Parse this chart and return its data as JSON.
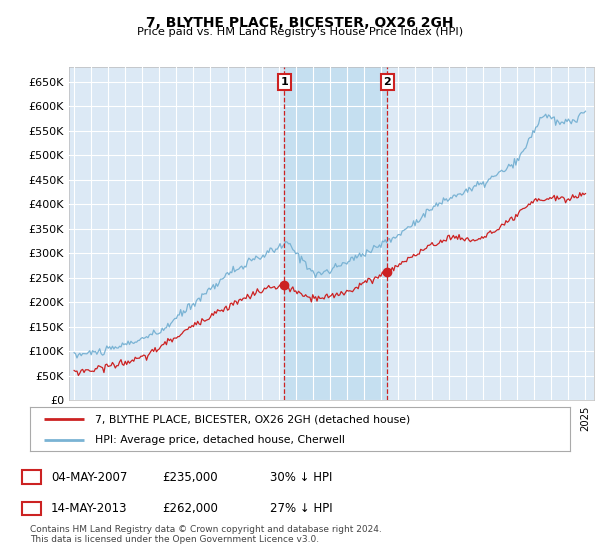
{
  "title": "7, BLYTHE PLACE, BICESTER, OX26 2GH",
  "subtitle": "Price paid vs. HM Land Registry's House Price Index (HPI)",
  "ylabel_ticks": [
    "£0",
    "£50K",
    "£100K",
    "£150K",
    "£200K",
    "£250K",
    "£300K",
    "£350K",
    "£400K",
    "£450K",
    "£500K",
    "£550K",
    "£600K",
    "£650K"
  ],
  "ytick_values": [
    0,
    50000,
    100000,
    150000,
    200000,
    250000,
    300000,
    350000,
    400000,
    450000,
    500000,
    550000,
    600000,
    650000
  ],
  "hpi_color": "#7ab3d4",
  "price_color": "#cc2222",
  "marker1_year": 2007.34,
  "marker1_price": 235000,
  "marker2_year": 2013.37,
  "marker2_price": 262000,
  "legend_line1": "7, BLYTHE PLACE, BICESTER, OX26 2GH (detached house)",
  "legend_line2": "HPI: Average price, detached house, Cherwell",
  "table_row1": [
    "1",
    "04-MAY-2007",
    "£235,000",
    "30% ↓ HPI"
  ],
  "table_row2": [
    "2",
    "14-MAY-2013",
    "£262,000",
    "27% ↓ HPI"
  ],
  "footnote": "Contains HM Land Registry data © Crown copyright and database right 2024.\nThis data is licensed under the Open Government Licence v3.0.",
  "plot_bg_color": "#dce9f5",
  "highlight_color": "#c5dff0",
  "grid_color": "#ffffff",
  "xlim_left": 1994.7,
  "xlim_right": 2025.5,
  "ylim_bottom": 0,
  "ylim_top": 680000
}
